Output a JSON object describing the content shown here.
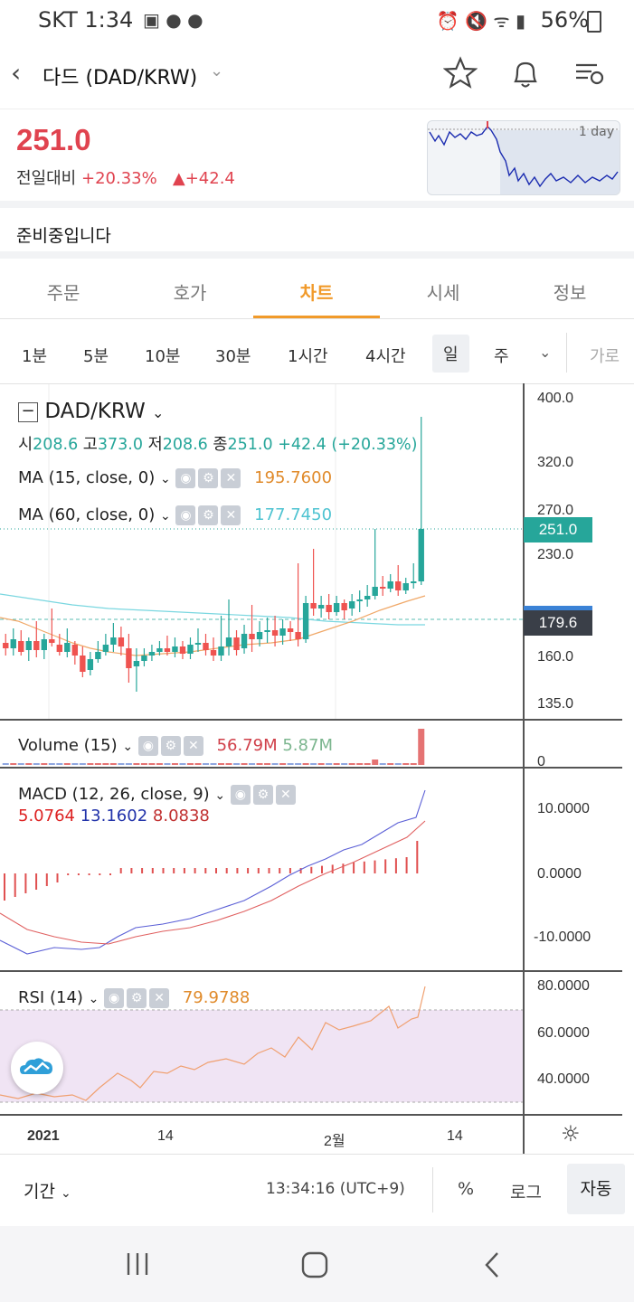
{
  "status": {
    "carrier_time": "SKT 1:34",
    "battery": "56%"
  },
  "header": {
    "title": "다드 (DAD/KRW)"
  },
  "price": {
    "current": "251.0",
    "change_label": "전일대비",
    "change_pct": "+20.33%",
    "change_abs": "▲+42.4",
    "mini_chart_label": "1 day"
  },
  "notice": "준비중입니다",
  "tabs": [
    "주문",
    "호가",
    "차트",
    "시세",
    "정보"
  ],
  "active_tab": "차트",
  "intervals": [
    "1분",
    "5분",
    "10분",
    "30분",
    "1시간",
    "4시간",
    "일",
    "주",
    "가로"
  ],
  "active_interval": "일",
  "chart": {
    "symbol": "DAD/KRW",
    "ohlc": {
      "open_label": "시",
      "open": "208.6",
      "high_label": "고",
      "high": "373.0",
      "low_label": "저",
      "low": "208.6",
      "close_label": "종",
      "close": "251.0",
      "change": "+42.4 (+20.33%)"
    },
    "ma15": {
      "label": "MA (15, close, 0)",
      "value": "195.7600"
    },
    "ma60": {
      "label": "MA (60, close, 0)",
      "value": "177.7450"
    },
    "volume": {
      "label": "Volume (15)",
      "value1": "56.79M",
      "value2": "5.87M"
    },
    "macd": {
      "label": "MACD (12, 26, close, 9)",
      "v1": "5.0764",
      "v2": "13.1602",
      "v3": "8.0838"
    },
    "rsi": {
      "label": "RSI (14)",
      "value": "79.9788"
    },
    "price_ticks": [
      "400.0",
      "320.0",
      "270.0",
      "230.0",
      "160.0",
      "135.0"
    ],
    "last_price_tag": "251.0",
    "ma_tag": "179.6",
    "volume_ticks": [
      "0"
    ],
    "macd_ticks": [
      "10.0000",
      "0.0000",
      "-10.0000"
    ],
    "rsi_ticks": [
      "80.0000",
      "60.0000",
      "40.0000"
    ],
    "x_ticks": [
      "2021",
      "14",
      "2월",
      "14"
    ]
  },
  "bottom": {
    "period": "기간",
    "clock": "13:34:16 (UTC+9)",
    "pct": "%",
    "log": "로그",
    "auto": "자동"
  },
  "colors": {
    "up": "#26a69a",
    "down": "#ef5350",
    "accent": "#f19a2a",
    "price_red": "#e0434f"
  }
}
